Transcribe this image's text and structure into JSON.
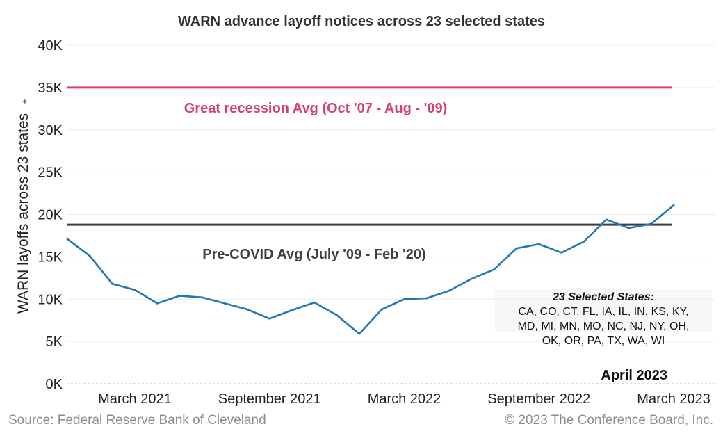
{
  "chart_data": {
    "type": "line",
    "title": "WARN advance layoff notices across 23 selected states",
    "ylabel": "WARN layoffs across 23 states",
    "ylabel_mark": "✦",
    "ylim": [
      0,
      40000
    ],
    "yticks": [
      {
        "value": 0,
        "label": "0K"
      },
      {
        "value": 5000,
        "label": "5K"
      },
      {
        "value": 10000,
        "label": "10K"
      },
      {
        "value": 15000,
        "label": "15K"
      },
      {
        "value": 20000,
        "label": "20K"
      },
      {
        "value": 25000,
        "label": "25K"
      },
      {
        "value": 30000,
        "label": "30K"
      },
      {
        "value": 35000,
        "label": "35K"
      },
      {
        "value": 40000,
        "label": "40K"
      }
    ],
    "xrange": [
      "2020-12",
      "2023-04"
    ],
    "xticks": [
      {
        "month": "2021-03",
        "label": "March 2021"
      },
      {
        "month": "2021-09",
        "label": "September 2021"
      },
      {
        "month": "2022-03",
        "label": "March 2022"
      },
      {
        "month": "2022-09",
        "label": "September 2022"
      },
      {
        "month": "2023-03",
        "label": "March 2023"
      }
    ],
    "series": [
      {
        "name": "WARN layoffs",
        "color": "#1f77b4",
        "points": [
          {
            "month": "2020-12",
            "value": 17100
          },
          {
            "month": "2021-01",
            "value": 15100
          },
          {
            "month": "2021-02",
            "value": 11800
          },
          {
            "month": "2021-03",
            "value": 11100
          },
          {
            "month": "2021-04",
            "value": 9500
          },
          {
            "month": "2021-05",
            "value": 10400
          },
          {
            "month": "2021-06",
            "value": 10200
          },
          {
            "month": "2021-07",
            "value": 9500
          },
          {
            "month": "2021-08",
            "value": 8800
          },
          {
            "month": "2021-09",
            "value": 7700
          },
          {
            "month": "2021-10",
            "value": 8700
          },
          {
            "month": "2021-11",
            "value": 9600
          },
          {
            "month": "2021-12",
            "value": 8100
          },
          {
            "month": "2022-01",
            "value": 5900
          },
          {
            "month": "2022-02",
            "value": 8800
          },
          {
            "month": "2022-03",
            "value": 10000
          },
          {
            "month": "2022-04",
            "value": 10100
          },
          {
            "month": "2022-05",
            "value": 11000
          },
          {
            "month": "2022-06",
            "value": 12400
          },
          {
            "month": "2022-07",
            "value": 13500
          },
          {
            "month": "2022-08",
            "value": 16000
          },
          {
            "month": "2022-09",
            "value": 16500
          },
          {
            "month": "2022-10",
            "value": 15500
          },
          {
            "month": "2022-11",
            "value": 16800
          },
          {
            "month": "2022-12",
            "value": 19400
          },
          {
            "month": "2023-01",
            "value": 18400
          },
          {
            "month": "2023-02",
            "value": 18900
          },
          {
            "month": "2023-03",
            "value": 21100
          }
        ]
      }
    ],
    "reference_lines": [
      {
        "name": "great-recession-avg",
        "value": 35000,
        "color": "#d6406b",
        "label": "Great recession Avg (Oct '07 - Aug - '09)"
      },
      {
        "name": "pre-covid-avg",
        "value": 18800,
        "color": "#3d4043",
        "label": "Pre-COVID Avg (July '09 - Feb '20)"
      }
    ],
    "annotation": "April 2023",
    "states_box": {
      "title": "23 Selected States:",
      "lines": [
        "CA, CO, CT, FL, IA, IL, IN, KS, KY,",
        "MD, MI, MN, MO, NC, NJ, NY, OH,",
        "OK, OR, PA, TX, WA, WI"
      ]
    },
    "grid": true
  },
  "footer": {
    "source": "Source: Federal Reserve Bank of Cleveland",
    "copyright": "© 2023 The Conference Board, Inc."
  }
}
